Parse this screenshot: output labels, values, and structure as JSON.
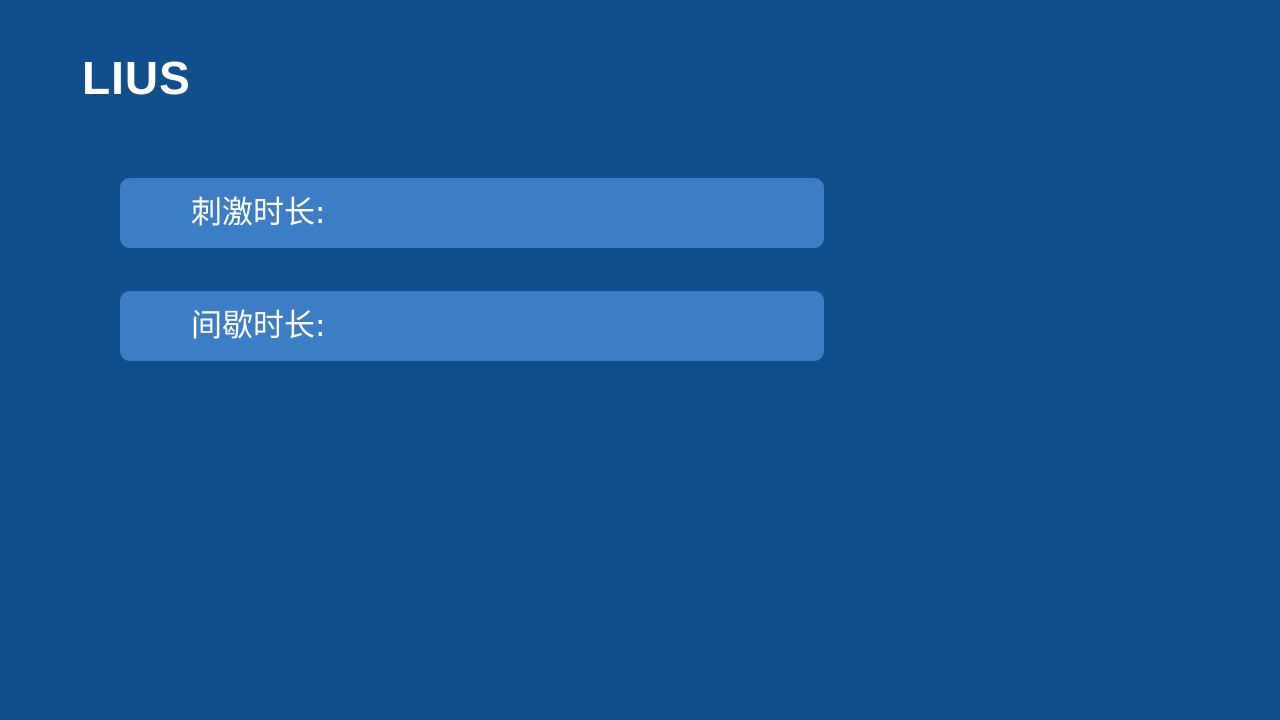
{
  "colors": {
    "background": "#114e8c",
    "field_background": "#3b7ec5",
    "text": "#ffffff"
  },
  "header": {
    "title": "LIUS"
  },
  "fields": [
    {
      "label": "刺激时长:",
      "value": ""
    },
    {
      "label": "间歇时长:",
      "value": ""
    }
  ]
}
